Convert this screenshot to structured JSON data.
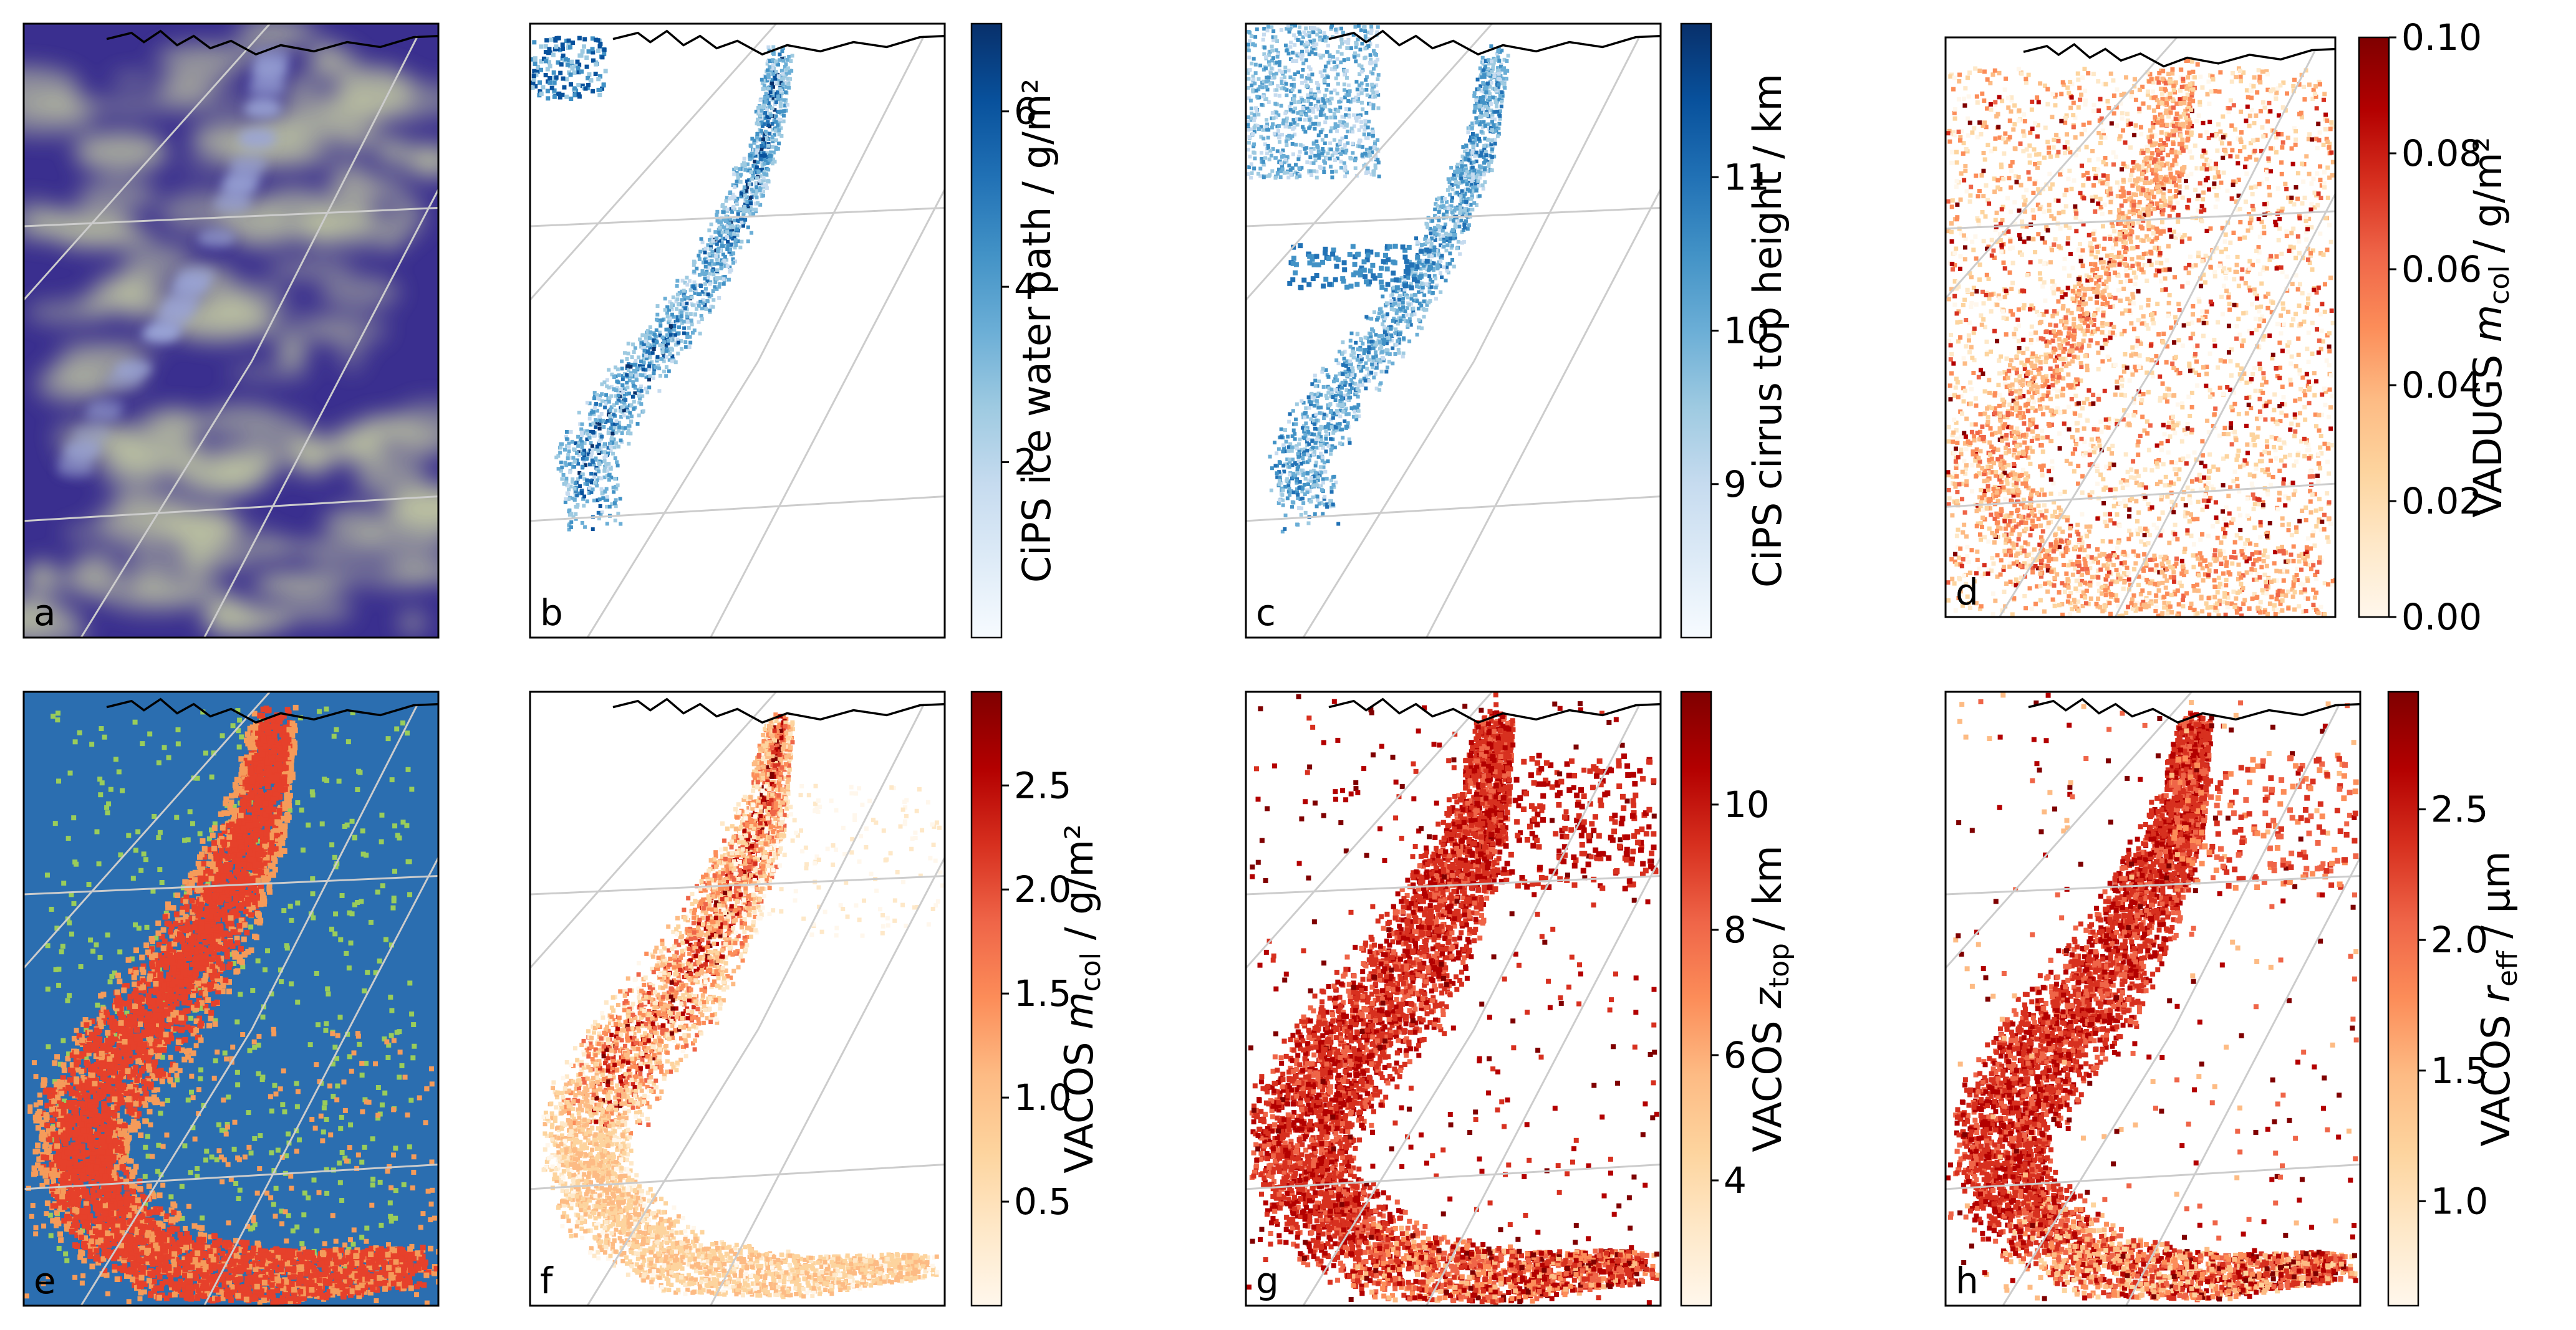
{
  "figure": {
    "description_text": "",
    "panel_letters": [
      "a",
      "b",
      "c",
      "d",
      "e",
      "f",
      "g",
      "h"
    ]
  },
  "colors": {
    "blues": [
      "#f7fbff",
      "#deebf7",
      "#c6dbef",
      "#9ecae1",
      "#6baed6",
      "#4292c6",
      "#2171b5",
      "#08519c",
      "#08306b"
    ],
    "orrd": [
      "#fff7ec",
      "#fee8c8",
      "#fdd49e",
      "#fdbb84",
      "#fc8d59",
      "#ef6548",
      "#d7301f",
      "#b30000",
      "#7f0000"
    ],
    "classes": [
      "#2b6eb0",
      "#e6412b",
      "#f59b5a",
      "#9acd5a"
    ],
    "rgb_base": "#3a2f8f",
    "rgb_cloud": "#d7e0a5",
    "grid": "#cccccc",
    "coast": "#000000"
  },
  "chart_data": [
    {
      "id": "a",
      "type": "heatmap",
      "letter": "a",
      "title": "",
      "colorbar": null,
      "content": "RGB satellite composite"
    },
    {
      "id": "b",
      "type": "heatmap",
      "letter": "b",
      "cmap": "blues",
      "colorbar": {
        "label": "CiPS ice water path / g/m²",
        "ticks": [
          "2",
          "4",
          "6"
        ],
        "tick_values": [
          2,
          4,
          6
        ],
        "range": [
          0,
          7
        ]
      }
    },
    {
      "id": "c",
      "type": "heatmap",
      "letter": "c",
      "cmap": "blues",
      "colorbar": {
        "label": "CiPS cirrus top height / km",
        "ticks": [
          "9",
          "10",
          "11"
        ],
        "tick_values": [
          9,
          10,
          11
        ],
        "range": [
          8,
          12
        ]
      }
    },
    {
      "id": "d",
      "type": "heatmap",
      "letter": "d",
      "cmap": "orrd",
      "colorbar": {
        "label_main": "VADUGS ",
        "label_var": "m",
        "label_sub": "col",
        "label_unit": " / g/m²",
        "ticks": [
          "0.00",
          "0.02",
          "0.04",
          "0.06",
          "0.08",
          "0.10"
        ],
        "tick_values": [
          0,
          0.02,
          0.04,
          0.06,
          0.08,
          0.1
        ],
        "range": [
          0,
          0.1
        ]
      }
    },
    {
      "id": "e",
      "type": "heatmap",
      "letter": "e",
      "colorbar": null,
      "content": "classification mask"
    },
    {
      "id": "f",
      "type": "heatmap",
      "letter": "f",
      "cmap": "orrd",
      "colorbar": {
        "label_main": "VACOS ",
        "label_var": "m",
        "label_sub": "col",
        "label_unit": " / g/m²",
        "ticks": [
          "0.5",
          "1.0",
          "1.5",
          "2.0",
          "2.5"
        ],
        "tick_values": [
          0.5,
          1.0,
          1.5,
          2.0,
          2.5
        ],
        "range": [
          0,
          2.95
        ]
      }
    },
    {
      "id": "g",
      "type": "heatmap",
      "letter": "g",
      "cmap": "orrd",
      "colorbar": {
        "label_main": "VACOS ",
        "label_var": "z",
        "label_sub": "top",
        "label_unit": " / km",
        "ticks": [
          "4",
          "6",
          "8",
          "10"
        ],
        "tick_values": [
          4,
          6,
          8,
          10
        ],
        "range": [
          2,
          11.8
        ]
      }
    },
    {
      "id": "h",
      "type": "heatmap",
      "letter": "h",
      "cmap": "orrd",
      "colorbar": {
        "label_main": "VACOS ",
        "label_var": "r",
        "label_sub": "eff",
        "label_unit": " / μm",
        "ticks": [
          "1.0",
          "1.5",
          "2.0",
          "2.5"
        ],
        "tick_values": [
          1.0,
          1.5,
          2.0,
          2.5
        ],
        "range": [
          0.6,
          2.95
        ]
      }
    }
  ]
}
